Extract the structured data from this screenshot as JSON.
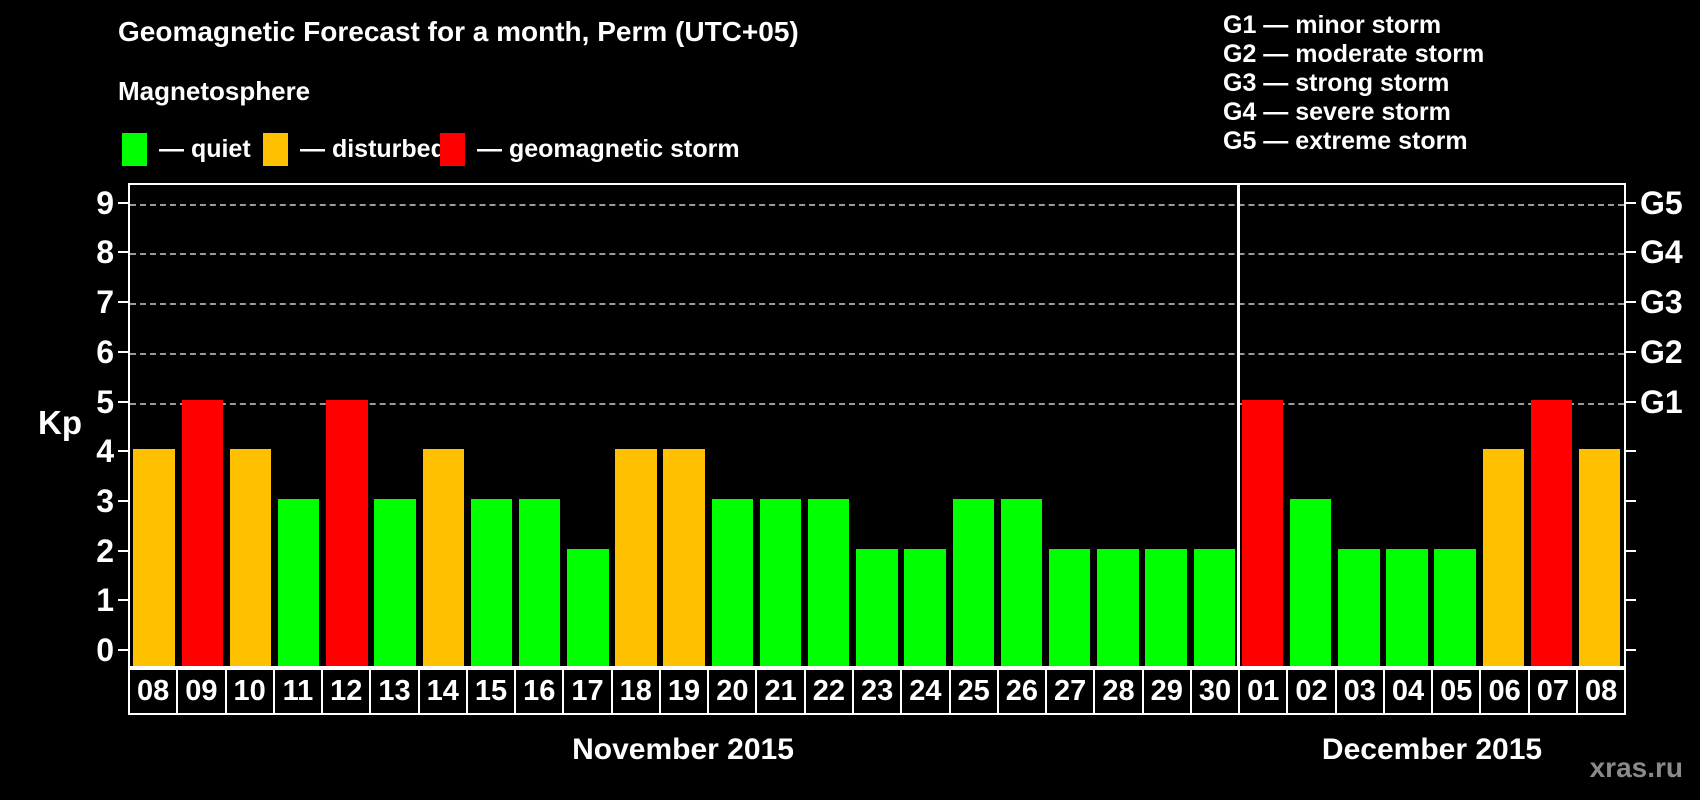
{
  "title": "Geomagnetic Forecast for a month, Perm (UTC+05)",
  "subtitle": "Magnetosphere",
  "legend": {
    "items": [
      {
        "name": "quiet",
        "label": "— quiet",
        "color": "#00ff00"
      },
      {
        "name": "disturbed",
        "label": "— disturbed",
        "color": "#ffc000"
      },
      {
        "name": "storm",
        "label": "— geomagnetic storm",
        "color": "#ff0000"
      }
    ]
  },
  "g_legend": {
    "items": [
      "G1 — minor storm",
      "G2 — moderate storm",
      "G3 — strong storm",
      "G4 — severe storm",
      "G5 — extreme storm"
    ]
  },
  "axes": {
    "y_left_label": "Kp",
    "y_left_ticks": [
      "0",
      "1",
      "2",
      "3",
      "4",
      "5",
      "6",
      "7",
      "8",
      "9"
    ],
    "y_right_labels": [
      {
        "label": "G1",
        "kp": 5
      },
      {
        "label": "G2",
        "kp": 6
      },
      {
        "label": "G3",
        "kp": 7
      },
      {
        "label": "G4",
        "kp": 8
      },
      {
        "label": "G5",
        "kp": 9
      }
    ]
  },
  "months": [
    {
      "label": "November 2015"
    },
    {
      "label": "December 2015"
    }
  ],
  "status_colors": {
    "quiet": "#00ff00",
    "disturbed": "#ffc000",
    "storm": "#ff0000"
  },
  "bars": [
    {
      "month": "November 2015",
      "day": "08",
      "kp": 4,
      "status": "disturbed"
    },
    {
      "month": "November 2015",
      "day": "09",
      "kp": 5,
      "status": "storm"
    },
    {
      "month": "November 2015",
      "day": "10",
      "kp": 4,
      "status": "disturbed"
    },
    {
      "month": "November 2015",
      "day": "11",
      "kp": 3,
      "status": "quiet"
    },
    {
      "month": "November 2015",
      "day": "12",
      "kp": 5,
      "status": "storm"
    },
    {
      "month": "November 2015",
      "day": "13",
      "kp": 3,
      "status": "quiet"
    },
    {
      "month": "November 2015",
      "day": "14",
      "kp": 4,
      "status": "disturbed"
    },
    {
      "month": "November 2015",
      "day": "15",
      "kp": 3,
      "status": "quiet"
    },
    {
      "month": "November 2015",
      "day": "16",
      "kp": 3,
      "status": "quiet"
    },
    {
      "month": "November 2015",
      "day": "17",
      "kp": 2,
      "status": "quiet"
    },
    {
      "month": "November 2015",
      "day": "18",
      "kp": 4,
      "status": "disturbed"
    },
    {
      "month": "November 2015",
      "day": "19",
      "kp": 4,
      "status": "disturbed"
    },
    {
      "month": "November 2015",
      "day": "20",
      "kp": 3,
      "status": "quiet"
    },
    {
      "month": "November 2015",
      "day": "21",
      "kp": 3,
      "status": "quiet"
    },
    {
      "month": "November 2015",
      "day": "22",
      "kp": 3,
      "status": "quiet"
    },
    {
      "month": "November 2015",
      "day": "23",
      "kp": 2,
      "status": "quiet"
    },
    {
      "month": "November 2015",
      "day": "24",
      "kp": 2,
      "status": "quiet"
    },
    {
      "month": "November 2015",
      "day": "25",
      "kp": 3,
      "status": "quiet"
    },
    {
      "month": "November 2015",
      "day": "26",
      "kp": 3,
      "status": "quiet"
    },
    {
      "month": "November 2015",
      "day": "27",
      "kp": 2,
      "status": "quiet"
    },
    {
      "month": "November 2015",
      "day": "28",
      "kp": 2,
      "status": "quiet"
    },
    {
      "month": "November 2015",
      "day": "29",
      "kp": 2,
      "status": "quiet"
    },
    {
      "month": "November 2015",
      "day": "30",
      "kp": 2,
      "status": "quiet"
    },
    {
      "month": "December 2015",
      "day": "01",
      "kp": 5,
      "status": "storm"
    },
    {
      "month": "December 2015",
      "day": "02",
      "kp": 3,
      "status": "quiet"
    },
    {
      "month": "December 2015",
      "day": "03",
      "kp": 2,
      "status": "quiet"
    },
    {
      "month": "December 2015",
      "day": "04",
      "kp": 2,
      "status": "quiet"
    },
    {
      "month": "December 2015",
      "day": "05",
      "kp": 2,
      "status": "quiet"
    },
    {
      "month": "December 2015",
      "day": "06",
      "kp": 4,
      "status": "disturbed"
    },
    {
      "month": "December 2015",
      "day": "07",
      "kp": 5,
      "status": "storm"
    },
    {
      "month": "December 2015",
      "day": "08",
      "kp": 4,
      "status": "disturbed"
    }
  ],
  "watermark": "xras.ru",
  "chart_data": {
    "type": "bar",
    "title": "Geomagnetic Forecast for a month, Perm (UTC+05)",
    "xlabel": "",
    "ylabel": "Kp",
    "ylim": [
      0,
      9
    ],
    "grid": "horizontal dashed gridlines at Kp 5,6,7,8,9 only",
    "gridlines_at": [
      5,
      6,
      7,
      8,
      9
    ],
    "right_axis": {
      "G1": 5,
      "G2": 6,
      "G3": 7,
      "G4": 8,
      "G5": 9
    },
    "legend_position": "top-left (quiet/disturbed/storm), top-right (G1–G5 descriptions)",
    "categories": [
      "Nov 08",
      "Nov 09",
      "Nov 10",
      "Nov 11",
      "Nov 12",
      "Nov 13",
      "Nov 14",
      "Nov 15",
      "Nov 16",
      "Nov 17",
      "Nov 18",
      "Nov 19",
      "Nov 20",
      "Nov 21",
      "Nov 22",
      "Nov 23",
      "Nov 24",
      "Nov 25",
      "Nov 26",
      "Nov 27",
      "Nov 28",
      "Nov 29",
      "Nov 30",
      "Dec 01",
      "Dec 02",
      "Dec 03",
      "Dec 04",
      "Dec 05",
      "Dec 06",
      "Dec 07",
      "Dec 08"
    ],
    "values": [
      4,
      5,
      4,
      3,
      5,
      3,
      4,
      3,
      3,
      2,
      4,
      4,
      3,
      3,
      3,
      2,
      2,
      3,
      3,
      2,
      2,
      2,
      2,
      5,
      3,
      2,
      2,
      2,
      4,
      5,
      4
    ],
    "statuses": [
      "disturbed",
      "storm",
      "disturbed",
      "quiet",
      "storm",
      "quiet",
      "disturbed",
      "quiet",
      "quiet",
      "quiet",
      "disturbed",
      "disturbed",
      "quiet",
      "quiet",
      "quiet",
      "quiet",
      "quiet",
      "quiet",
      "quiet",
      "quiet",
      "quiet",
      "quiet",
      "quiet",
      "storm",
      "quiet",
      "quiet",
      "quiet",
      "quiet",
      "disturbed",
      "storm",
      "disturbed"
    ],
    "bar_colors": {
      "quiet": "#00ff00",
      "disturbed": "#ffc000",
      "storm": "#ff0000"
    },
    "month_separator_after_category": "Nov 30"
  }
}
